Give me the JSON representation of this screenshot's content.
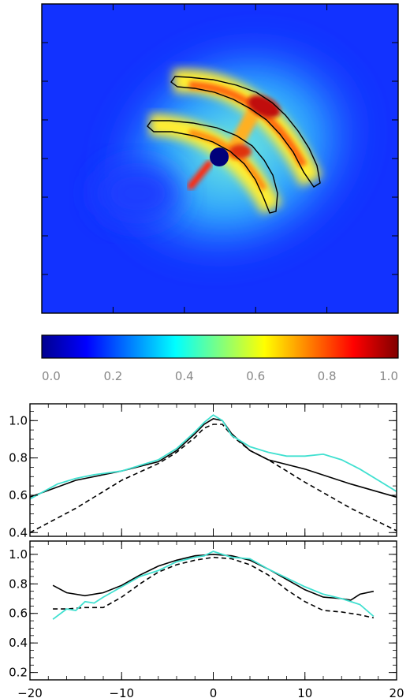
{
  "chart_data": [
    {
      "type": "heatmap",
      "colormap": "jet",
      "range": [
        0.0,
        1.0
      ],
      "colorbar": {
        "orientation": "horizontal",
        "placement": "below",
        "ticks": [
          "0.0",
          "0.2",
          "0.4",
          "0.6",
          "0.8",
          "1.0"
        ]
      },
      "contours": 2,
      "axes_tick_labels": false
    },
    {
      "type": "line",
      "title": "",
      "xlabel": "",
      "ylabel": "",
      "xlim": [
        -20,
        20
      ],
      "ylim": [
        0.38,
        1.09
      ],
      "yticks": [
        "0.4",
        "0.6",
        "0.8",
        "1.0"
      ],
      "x_tick_labels_shown": false,
      "series": [
        {
          "style": "solid",
          "color": "#000000",
          "x": [
            -20,
            -15,
            -10,
            -6,
            -4,
            -2,
            -1,
            0,
            1,
            2,
            4,
            6,
            10,
            15,
            20
          ],
          "y": [
            0.59,
            0.68,
            0.73,
            0.78,
            0.84,
            0.93,
            0.98,
            1.01,
            1.0,
            0.93,
            0.84,
            0.79,
            0.74,
            0.66,
            0.59
          ]
        },
        {
          "style": "dashed",
          "color": "#000000",
          "x": [
            -20,
            -15,
            -10,
            -6,
            -4,
            -2,
            -1,
            0,
            1,
            2,
            4,
            6,
            10,
            15,
            20
          ],
          "y": [
            0.4,
            0.53,
            0.68,
            0.77,
            0.83,
            0.91,
            0.96,
            0.98,
            0.98,
            0.92,
            0.84,
            0.79,
            0.67,
            0.53,
            0.41
          ]
        },
        {
          "style": "solid",
          "color": "#40e0d0",
          "x": [
            -20,
            -17,
            -15,
            -13,
            -10,
            -8,
            -6,
            -4,
            -2,
            -1,
            0,
            1,
            2,
            4,
            6,
            8,
            10,
            12,
            14,
            16,
            18,
            20
          ],
          "y": [
            0.58,
            0.66,
            0.69,
            0.71,
            0.73,
            0.76,
            0.79,
            0.85,
            0.94,
            0.99,
            1.03,
            1.0,
            0.92,
            0.86,
            0.83,
            0.81,
            0.81,
            0.82,
            0.79,
            0.74,
            0.68,
            0.62
          ]
        }
      ]
    },
    {
      "type": "line",
      "title": "",
      "xlabel": "",
      "ylabel": "",
      "xlim": [
        -20,
        20
      ],
      "ylim": [
        0.15,
        1.09
      ],
      "yticks": [
        "0.2",
        "0.4",
        "0.6",
        "0.8",
        "1.0"
      ],
      "xticks": [
        "-20",
        "-10",
        "0",
        "10",
        "20"
      ],
      "series": [
        {
          "style": "solid",
          "color": "#000000",
          "x": [
            -17.5,
            -16,
            -14,
            -12,
            -10,
            -8,
            -6,
            -4,
            -2,
            0,
            2,
            4,
            6,
            8,
            10,
            12,
            14,
            15,
            16,
            17.5
          ],
          "y": [
            0.79,
            0.74,
            0.72,
            0.74,
            0.79,
            0.86,
            0.92,
            0.96,
            0.99,
            1.0,
            0.99,
            0.96,
            0.9,
            0.83,
            0.76,
            0.71,
            0.7,
            0.69,
            0.73,
            0.75
          ]
        },
        {
          "style": "dashed",
          "color": "#000000",
          "x": [
            -17.5,
            -16,
            -14,
            -12,
            -10,
            -8,
            -6,
            -4,
            -2,
            0,
            2,
            4,
            6,
            8,
            10,
            12,
            14,
            16,
            17.5
          ],
          "y": [
            0.63,
            0.63,
            0.64,
            0.64,
            0.71,
            0.8,
            0.88,
            0.93,
            0.96,
            0.98,
            0.97,
            0.93,
            0.86,
            0.76,
            0.68,
            0.62,
            0.61,
            0.59,
            0.57
          ]
        },
        {
          "style": "solid",
          "color": "#40e0d0",
          "x": [
            -17.5,
            -16,
            -15,
            -14,
            -13,
            -12,
            -10,
            -8,
            -6,
            -4,
            -2,
            -1,
            0,
            1,
            2,
            4,
            6,
            8,
            10,
            12,
            14,
            16,
            17.5
          ],
          "y": [
            0.56,
            0.63,
            0.62,
            0.68,
            0.67,
            0.71,
            0.78,
            0.85,
            0.89,
            0.95,
            0.98,
            0.99,
            1.02,
            1.0,
            0.98,
            0.97,
            0.9,
            0.84,
            0.78,
            0.73,
            0.7,
            0.66,
            0.58
          ]
        }
      ]
    }
  ]
}
